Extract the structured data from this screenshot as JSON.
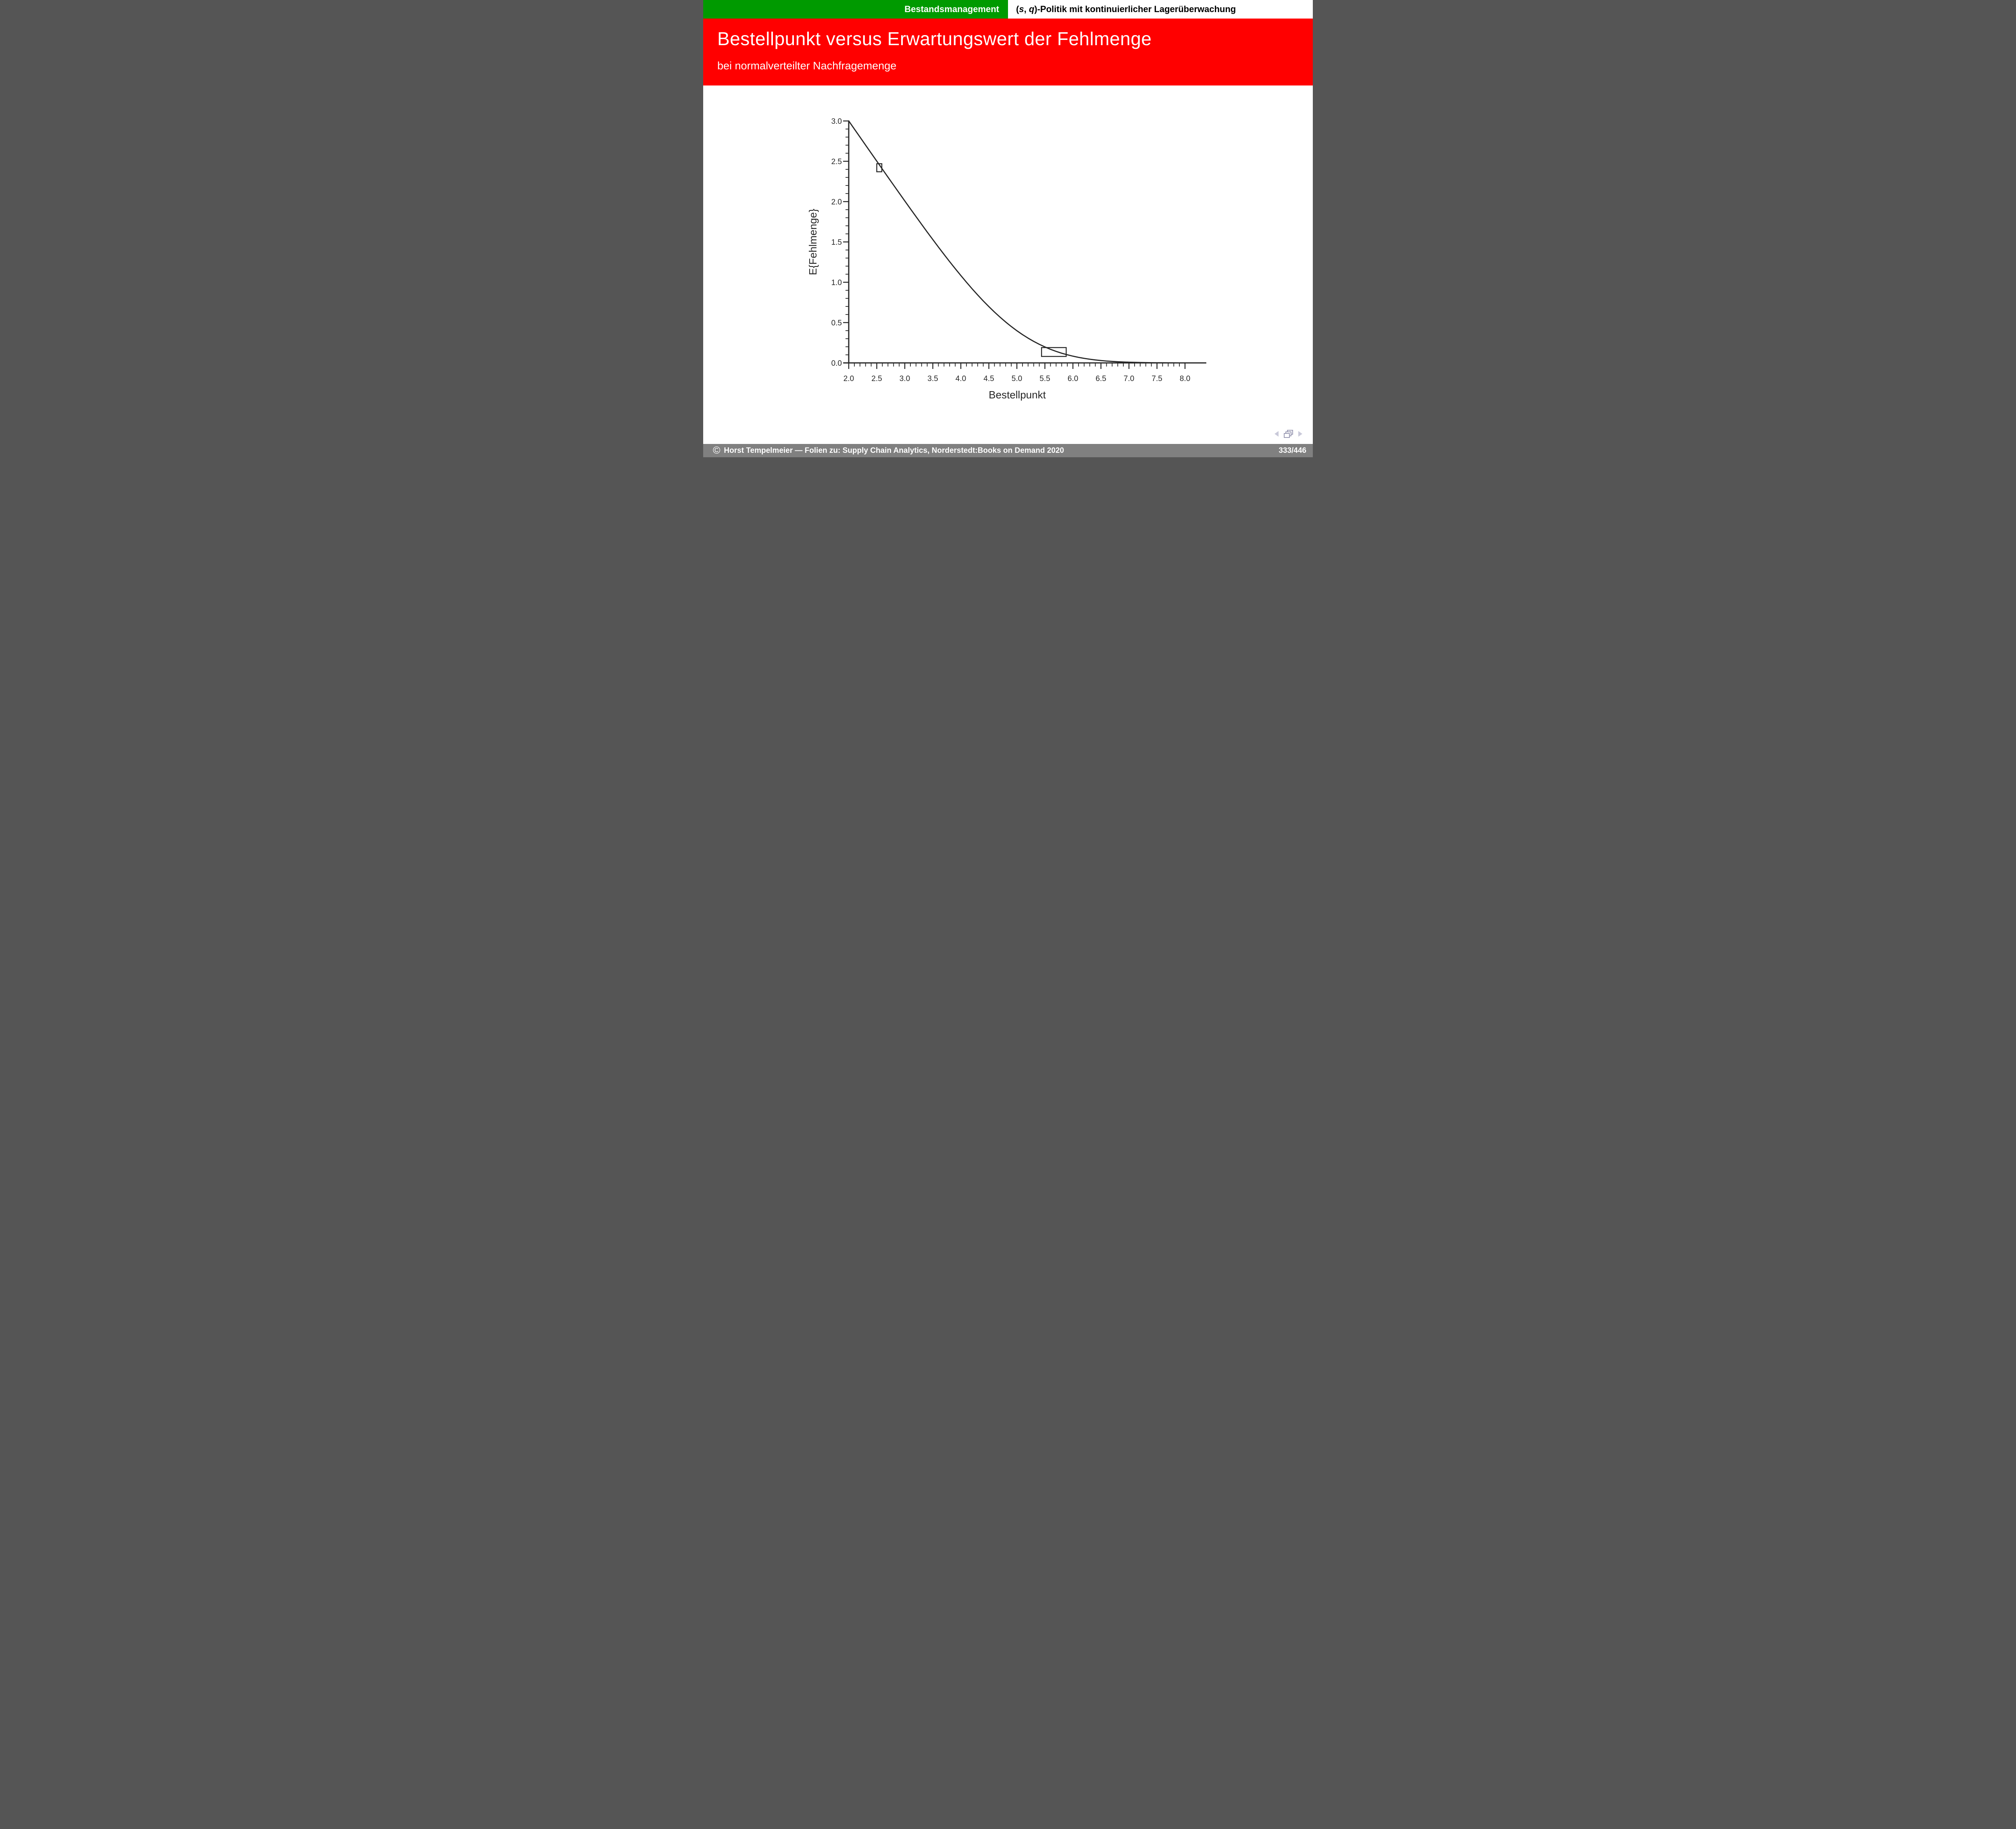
{
  "topbar": {
    "left": "Bestandsmanagement",
    "right_open": "(",
    "right_s": "s",
    "right_comma": ", ",
    "right_q": "q",
    "right_rest": ")-Politik mit kontinuierlicher Lagerüberwachung"
  },
  "header": {
    "title": "Bestellpunkt versus Erwartungswert der Fehlmenge",
    "subtitle": "bei normalverteilter Nachfragemenge"
  },
  "chart_data": {
    "type": "line",
    "title": "",
    "xlabel": "Bestellpunkt",
    "ylabel": "E{Fehlmenge}",
    "xlim": [
      2.0,
      8.4
    ],
    "ylim": [
      0.0,
      3.0
    ],
    "grid": false,
    "legend": "none",
    "x_ticks": [
      2.0,
      2.5,
      3.0,
      3.5,
      4.0,
      4.5,
      5.0,
      5.5,
      6.0,
      6.5,
      7.0,
      7.5,
      8.0
    ],
    "x_tick_labels": [
      "2.0",
      "2.5",
      "3.0",
      "3.5",
      "4.0",
      "4.5",
      "5.0",
      "5.5",
      "6.0",
      "6.5",
      "7.0",
      "7.5",
      "8.0"
    ],
    "y_ticks": [
      0.0,
      0.5,
      1.0,
      1.5,
      2.0,
      2.5,
      3.0
    ],
    "y_tick_labels": [
      "0.0",
      "0.5",
      "1.0",
      "1.5",
      "2.0",
      "2.5",
      "3.0"
    ],
    "minor_tick_step": 0.1,
    "series": [
      {
        "name": "E{Fehlmenge}",
        "x": [
          2.0,
          2.1,
          2.2,
          2.3,
          2.4,
          2.5,
          2.6,
          2.7,
          2.8,
          2.9,
          3.0,
          3.1,
          3.2,
          3.3,
          3.4,
          3.5,
          3.6,
          3.7,
          3.8,
          3.9,
          4.0,
          4.1,
          4.2,
          4.3,
          4.4,
          4.5,
          4.6,
          4.7,
          4.8,
          4.9,
          5.0,
          5.1,
          5.2,
          5.3,
          5.4,
          5.5,
          5.6,
          5.7,
          5.8,
          5.9,
          6.0,
          6.1,
          6.2,
          6.3,
          6.4,
          6.5,
          6.6,
          6.7,
          6.8,
          6.9,
          7.0,
          7.1,
          7.2,
          7.3,
          7.4,
          7.5,
          7.6,
          7.7,
          7.8,
          7.9,
          8.0,
          8.1,
          8.2,
          8.3
        ],
        "y": [
          3.0004,
          2.9005,
          2.8008,
          2.7011,
          2.6015,
          2.502,
          2.4027,
          2.3037,
          2.2049,
          2.1065,
          2.0085,
          1.9111,
          1.8143,
          1.7183,
          1.6232,
          1.5293,
          1.4367,
          1.3455,
          1.2561,
          1.1686,
          1.0833,
          1.0004,
          0.9202,
          0.8429,
          0.7687,
          0.6978,
          0.6304,
          0.5669,
          0.5069,
          0.4509,
          0.3989,
          0.3509,
          0.3069,
          0.2669,
          0.2304,
          0.1978,
          0.1687,
          0.1429,
          0.1202,
          0.1004,
          0.0833,
          0.0686,
          0.0561,
          0.0455,
          0.0367,
          0.0293,
          0.0232,
          0.0183,
          0.0143,
          0.0111,
          0.0085,
          0.0065,
          0.0049,
          0.0037,
          0.0027,
          0.002,
          0.0015,
          0.0011,
          0.0008,
          0.0005,
          0.0004,
          0.0003,
          0.0002,
          0.0001
        ]
      }
    ],
    "annotations": {
      "rects": [
        {
          "x0": 2.5,
          "y0": 2.37,
          "x1": 2.59,
          "y1": 2.47
        },
        {
          "x0": 5.44,
          "y0": 0.08,
          "x1": 5.88,
          "y1": 0.19
        }
      ]
    }
  },
  "nav": {
    "prev_icon": "left-triangle",
    "frames_icon": "stacked-frames",
    "next_icon": "right-triangle"
  },
  "footer": {
    "symbol": "©",
    "text": "Horst Tempelmeier — Folien zu: Supply Chain Analytics, Norderstedt:Books on Demand 2020",
    "page": "333/446"
  },
  "colors": {
    "topbar_green": "#009a00",
    "header_red": "#ff0000",
    "footer_gray": "#808080",
    "ink": "#262626",
    "nav_triangle": "#c9c9d9",
    "nav_frame": "#9b9bb4"
  }
}
